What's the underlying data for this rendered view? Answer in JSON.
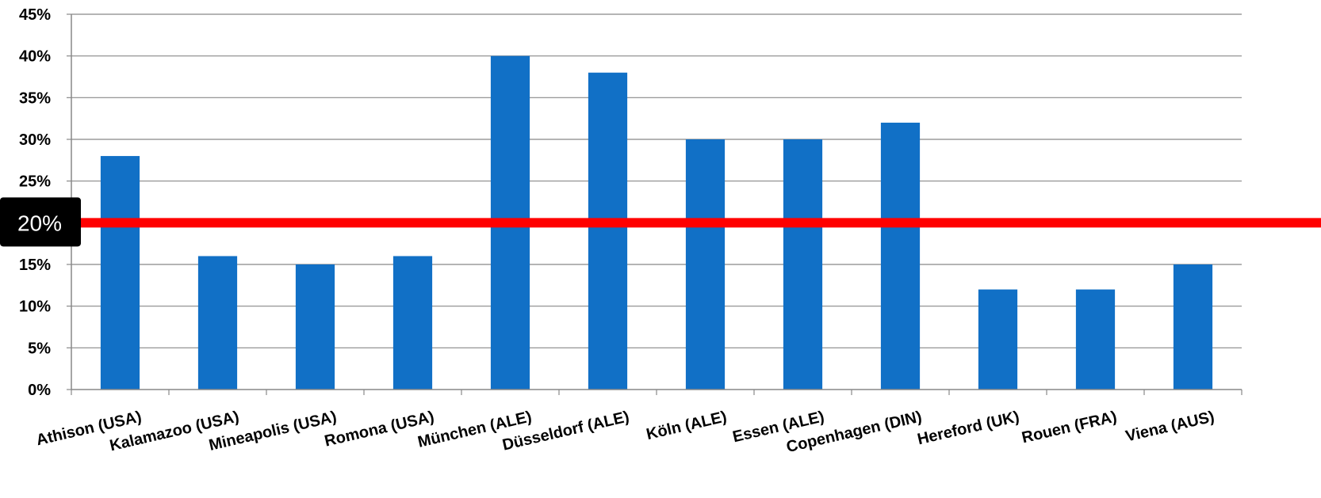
{
  "chart_data": {
    "type": "bar",
    "categories": [
      "Athison (USA)",
      "Kalamazoo (USA)",
      "Mineapolis (USA)",
      "Romona (USA)",
      "München (ALE)",
      "Düsseldorf (ALE)",
      "Köln (ALE)",
      "Essen (ALE)",
      "Copenhagen (DIN)",
      "Hereford (UK)",
      "Rouen (FRA)",
      "Viena (AUS)"
    ],
    "values": [
      28,
      16,
      15,
      16,
      40,
      38,
      30,
      30,
      32,
      12,
      12,
      15
    ],
    "yticks": [
      "0%",
      "5%",
      "10%",
      "15%",
      "20%",
      "25%",
      "30%",
      "35%",
      "40%",
      "45%"
    ],
    "ylim": [
      0,
      45
    ],
    "grid": true,
    "reference_line": {
      "value": 20,
      "label": "20%",
      "color": "#ff0000"
    },
    "colors": {
      "bar": "#1170c6",
      "grid": "#888888",
      "axis": "#888888"
    }
  }
}
